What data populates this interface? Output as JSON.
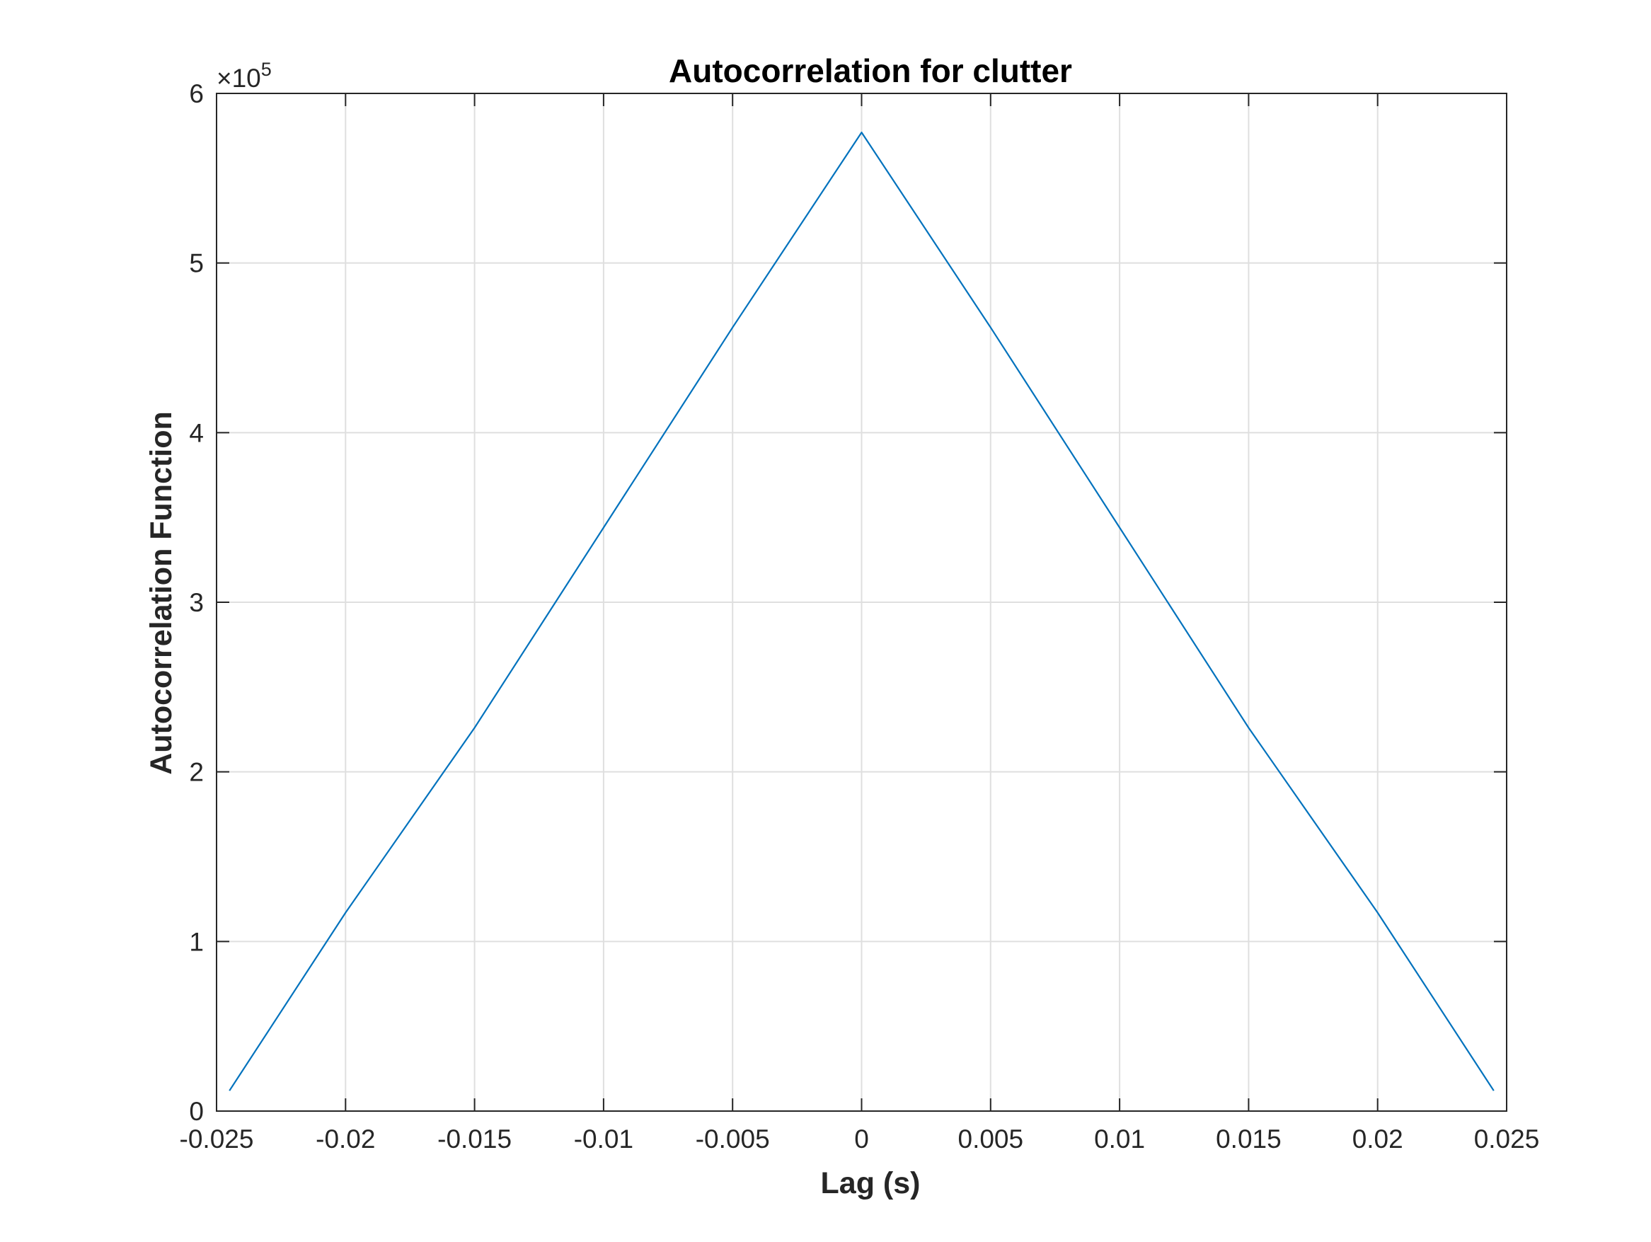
{
  "chart_data": {
    "type": "line",
    "title": "Autocorrelation for clutter",
    "xlabel": "Lag (s)",
    "ylabel": "Autocorrelation Function",
    "xlim": [
      -0.025,
      0.025
    ],
    "ylim": [
      0,
      600000
    ],
    "y_exponent_label": "×10",
    "y_exponent_power": "5",
    "x_ticks": [
      -0.025,
      -0.02,
      -0.015,
      -0.01,
      -0.005,
      0,
      0.005,
      0.01,
      0.015,
      0.02,
      0.025
    ],
    "x_tick_labels": [
      "-0.025",
      "-0.02",
      "-0.015",
      "-0.01",
      "-0.005",
      "0",
      "0.005",
      "0.01",
      "0.015",
      "0.02",
      "0.025"
    ],
    "y_ticks": [
      0,
      100000,
      200000,
      300000,
      400000,
      500000,
      600000
    ],
    "y_tick_labels": [
      "0",
      "1",
      "2",
      "3",
      "4",
      "5",
      "6"
    ],
    "grid": true,
    "series": [
      {
        "color": "#0072bd",
        "x": [
          -0.0245,
          -0.02,
          -0.015,
          -0.01,
          -0.005,
          0,
          0.005,
          0.01,
          0.015,
          0.02,
          0.0245
        ],
        "y": [
          12000,
          117000,
          226000,
          344000,
          462000,
          577000,
          462000,
          344000,
          226000,
          117000,
          12000
        ]
      }
    ]
  }
}
